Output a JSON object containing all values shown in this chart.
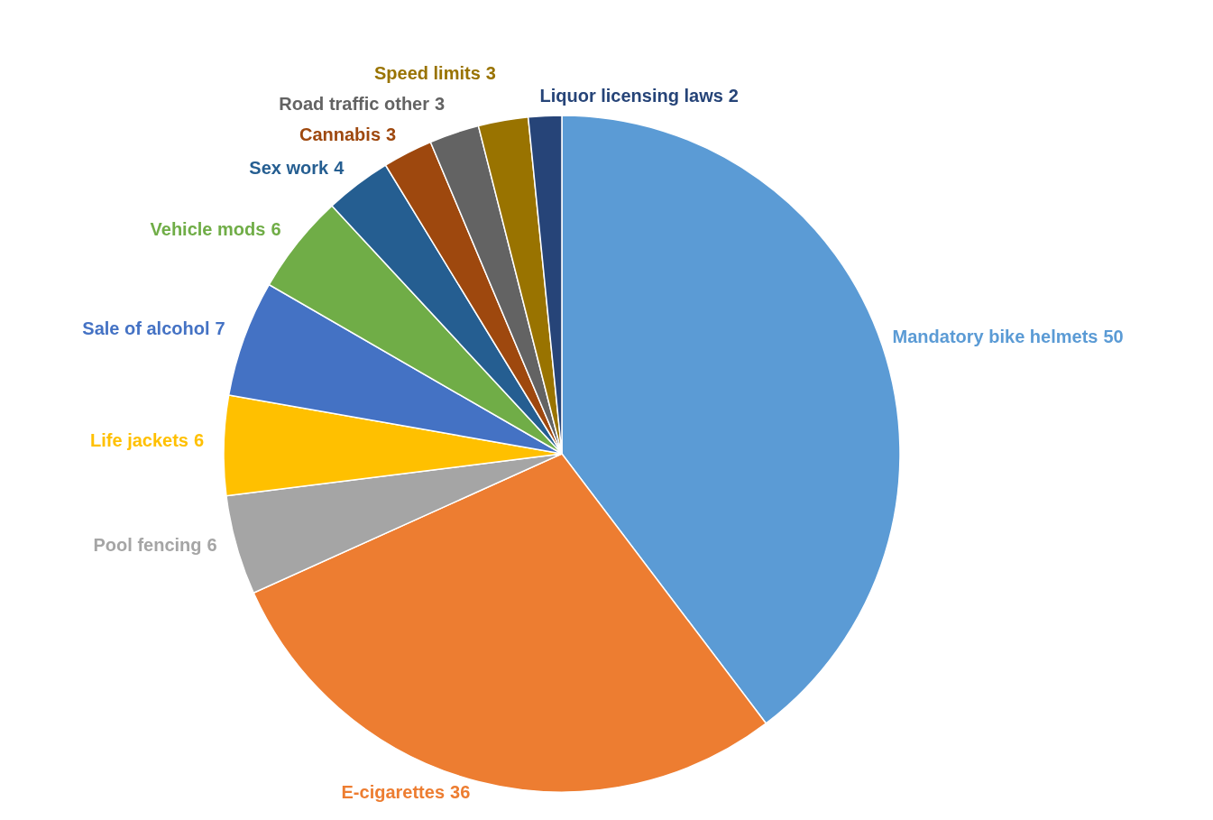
{
  "chart_data": {
    "type": "pie",
    "categories": [
      "Mandatory bike helmets",
      "E-cigarettes",
      "Pool fencing",
      "Life jackets",
      "Sale of alcohol",
      "Vehicle mods",
      "Sex work",
      "Cannabis",
      "Road traffic other",
      "Speed limits",
      "Liquor licensing laws"
    ],
    "values": [
      50,
      36,
      6,
      6,
      7,
      6,
      4,
      3,
      3,
      3,
      2
    ],
    "colors": [
      "#5b9bd5",
      "#ed7d31",
      "#a5a5a5",
      "#ffc000",
      "#4472c4",
      "#70ad47",
      "#255e91",
      "#9e480e",
      "#636363",
      "#997300",
      "#264478"
    ],
    "data_labels": true
  }
}
